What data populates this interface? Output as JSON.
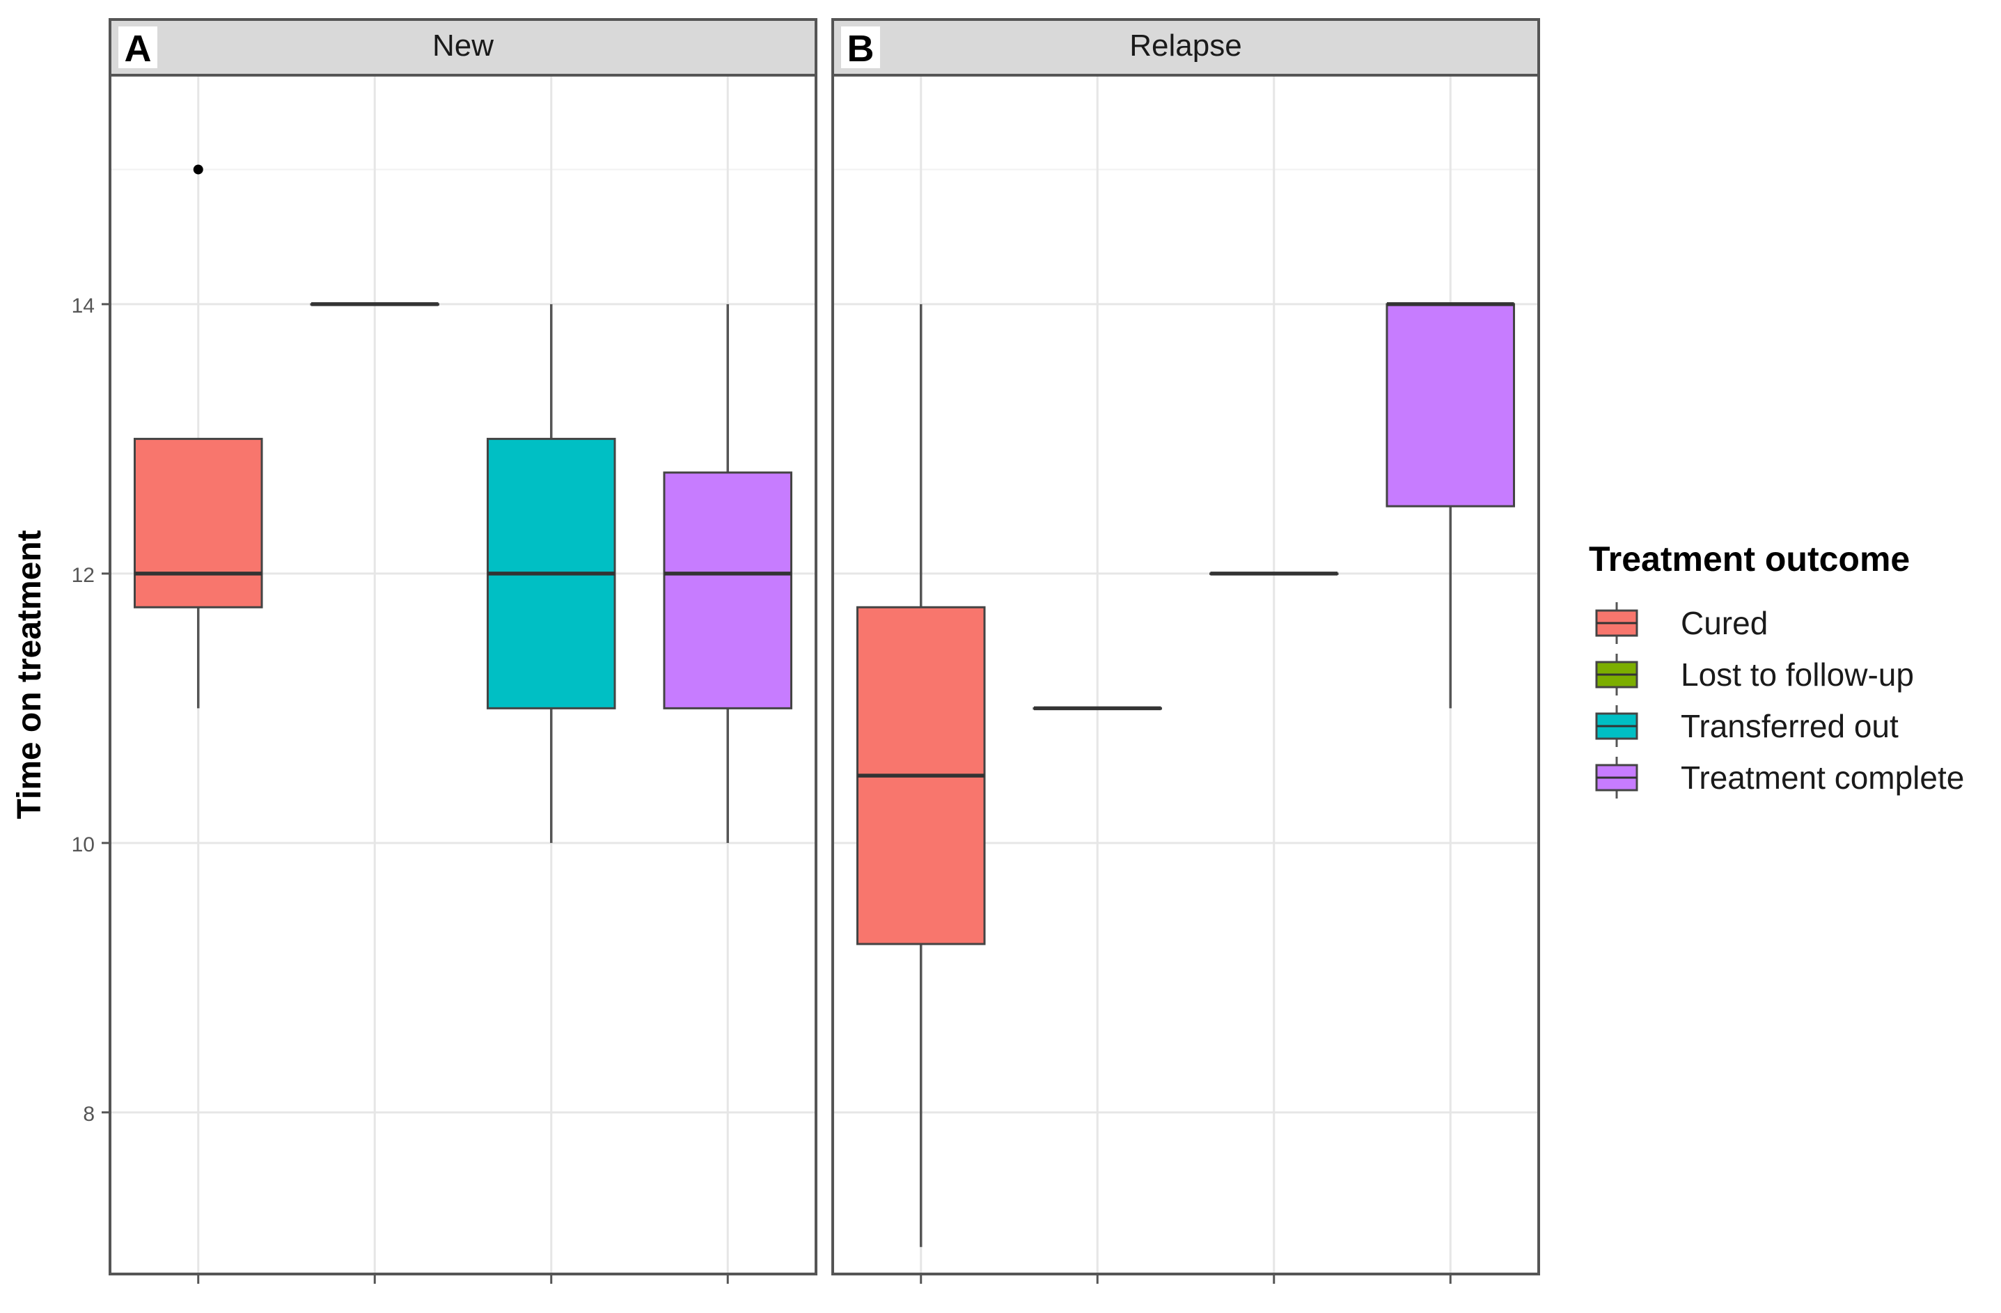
{
  "chart_data": {
    "type": "box",
    "ylabel": "Time on treatment",
    "xlabel": "",
    "ylim": [
      6.8,
      15.7
    ],
    "yticks": [
      8,
      10,
      12,
      14
    ],
    "grid": true,
    "legend": {
      "title": "Treatment outcome",
      "position": "right",
      "entries": [
        {
          "label": "Cured",
          "color": "#F8766D"
        },
        {
          "label": "Lost to follow-up",
          "color": "#7CAE00"
        },
        {
          "label": "Transferred out",
          "color": "#00BFC4"
        },
        {
          "label": "Treatment complete",
          "color": "#C77CFF"
        }
      ]
    },
    "categories": [
      "Cured",
      "Lost to follow-up",
      "Transferred out",
      "Treatment complete"
    ],
    "panels": [
      {
        "tag": "A",
        "strip": "New",
        "boxes": [
          {
            "category": "Cured",
            "whisker_low": 11,
            "q1": 11.75,
            "median": 12,
            "q3": 13,
            "whisker_high": 13,
            "outliers": [
              15
            ]
          },
          {
            "category": "Lost to follow-up",
            "whisker_low": 14,
            "q1": 14,
            "median": 14,
            "q3": 14,
            "whisker_high": 14,
            "outliers": []
          },
          {
            "category": "Transferred out",
            "whisker_low": 10,
            "q1": 11,
            "median": 12,
            "q3": 13,
            "whisker_high": 14,
            "outliers": []
          },
          {
            "category": "Treatment complete",
            "whisker_low": 10,
            "q1": 11,
            "median": 12,
            "q3": 12.75,
            "whisker_high": 14,
            "outliers": []
          }
        ]
      },
      {
        "tag": "B",
        "strip": "Relapse",
        "boxes": [
          {
            "category": "Cured",
            "whisker_low": 7,
            "q1": 9.25,
            "median": 10.5,
            "q3": 11.75,
            "whisker_high": 14,
            "outliers": []
          },
          {
            "category": "Lost to follow-up",
            "whisker_low": 11,
            "q1": 11,
            "median": 11,
            "q3": 11,
            "whisker_high": 11,
            "outliers": []
          },
          {
            "category": "Transferred out",
            "whisker_low": 12,
            "q1": 12,
            "median": 12,
            "q3": 12,
            "whisker_high": 12,
            "outliers": []
          },
          {
            "category": "Treatment complete",
            "whisker_low": 11,
            "q1": 12.5,
            "median": 14,
            "q3": 14,
            "whisker_high": 14,
            "outliers": []
          }
        ]
      }
    ]
  }
}
